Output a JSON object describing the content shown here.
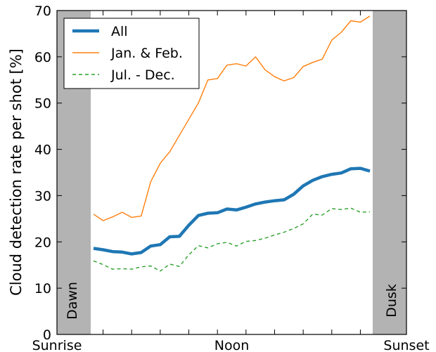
{
  "chart_data": {
    "type": "line",
    "ylabel": "Cloud detection rate per shot [%]",
    "xlabel": "",
    "ylim": [
      0,
      70
    ],
    "y_ticks": [
      0,
      10,
      20,
      30,
      40,
      50,
      60,
      70
    ],
    "x_tick_labels": [
      "Sunrise",
      "Noon",
      "Sunset"
    ],
    "bands": [
      "Dawn",
      "Dusk"
    ],
    "band_color": "#b3b3b3",
    "legend_position": "top-left",
    "grid": false,
    "x": [
      1,
      2,
      3,
      4,
      5,
      6,
      7,
      8,
      9,
      10,
      11,
      12,
      13,
      14,
      15,
      16,
      17,
      18,
      19,
      20,
      21,
      22,
      23,
      24,
      25,
      26,
      27,
      28,
      29,
      30
    ],
    "series": [
      {
        "name": "All",
        "color": "#1f77b4",
        "style": "solid-thick",
        "values": [
          18.6,
          18.3,
          17.9,
          17.8,
          17.4,
          17.7,
          19.1,
          19.4,
          21.1,
          21.2,
          23.6,
          25.7,
          26.2,
          26.3,
          27.1,
          26.9,
          27.5,
          28.2,
          28.6,
          28.9,
          29.1,
          30.3,
          32.1,
          33.3,
          34.1,
          34.6,
          34.9,
          35.8,
          35.9,
          35.3
        ]
      },
      {
        "name": "Jan. & Feb.",
        "color": "#ff7f0e",
        "style": "solid-thin",
        "values": [
          26.0,
          24.6,
          25.4,
          26.4,
          25.3,
          25.6,
          33.0,
          37.0,
          39.5,
          43.0,
          46.5,
          50.0,
          55.0,
          55.3,
          58.2,
          58.5,
          58.0,
          60.0,
          57.2,
          55.7,
          54.8,
          55.5,
          57.9,
          58.8,
          59.5,
          63.6,
          65.3,
          67.8,
          67.5,
          68.8
        ]
      },
      {
        "name": "Jul. - Dec.",
        "color": "#2ca02c",
        "style": "dashed",
        "values": [
          15.9,
          15.1,
          14.1,
          14.2,
          14.1,
          14.6,
          14.8,
          13.7,
          15.2,
          14.7,
          17.2,
          19.2,
          18.7,
          19.6,
          19.9,
          19.1,
          20.1,
          20.3,
          20.8,
          21.5,
          22.1,
          22.9,
          23.9,
          26.0,
          25.8,
          27.2,
          27.0,
          27.3,
          26.4,
          26.5
        ]
      }
    ]
  }
}
